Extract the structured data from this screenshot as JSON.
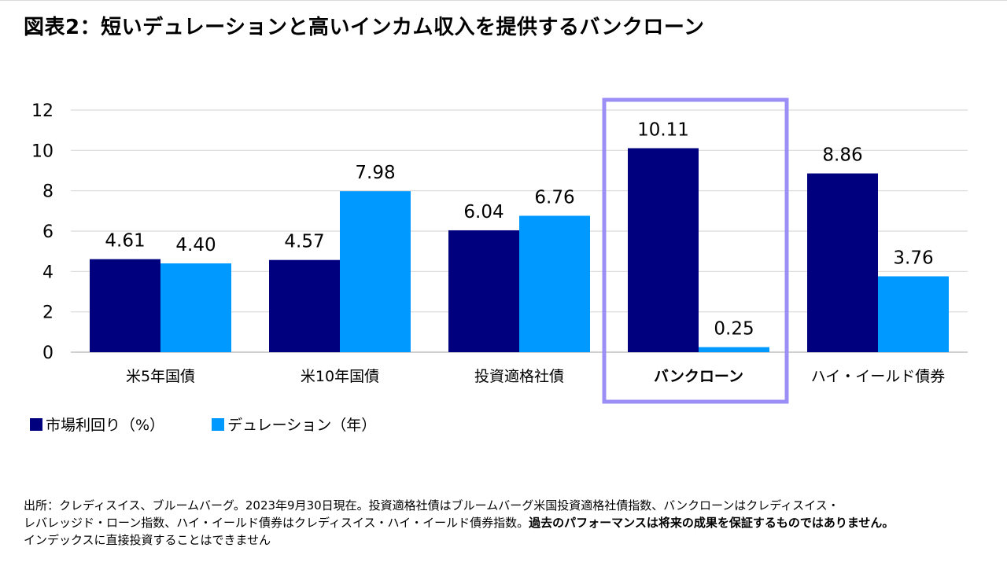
{
  "title": "図表2：短いデュレーションと高いインカム収入を提供するバンクローン",
  "chart_data": {
    "type": "bar",
    "categories": [
      "米5年国債",
      "米10年国債",
      "投資適格社債",
      "バンクローン",
      "ハイ・イールド債券"
    ],
    "highlighted_category": "バンクローン",
    "series": [
      {
        "name": "市場利回り（%）",
        "values": [
          4.61,
          4.57,
          6.04,
          10.11,
          8.86
        ],
        "labels": [
          "4.61",
          "4.57",
          "6.04",
          "10.11",
          "8.86"
        ],
        "color": "#00007f"
      },
      {
        "name": "デュレーション（年）",
        "values": [
          4.4,
          7.98,
          6.76,
          0.25,
          3.76
        ],
        "labels": [
          "4.40",
          "7.98",
          "6.76",
          "0.25",
          "3.76"
        ],
        "color": "#0099ff"
      }
    ],
    "ylim": [
      0,
      12
    ],
    "yticks": [
      0,
      2,
      4,
      6,
      8,
      10,
      12
    ],
    "grid": true,
    "legend": "bottom-left",
    "highlight_color": "#9b8ff5"
  },
  "source": {
    "line1": "出所：クレディスイス、ブルームバーグ。2023年9月30日現在。投資適格社債はブルームバーグ米国投資適格社債指数、バンクローンはクレディスイス・",
    "line2_plain": "レバレッジド・ローン指数、ハイ・イールド債券はクレディスイス・ハイ・イールド債券指数。",
    "line2_bold": "過去のパフォーマンスは将来の成果を保証するものではありません。",
    "line3": "インデックスに直接投資することはできません"
  }
}
